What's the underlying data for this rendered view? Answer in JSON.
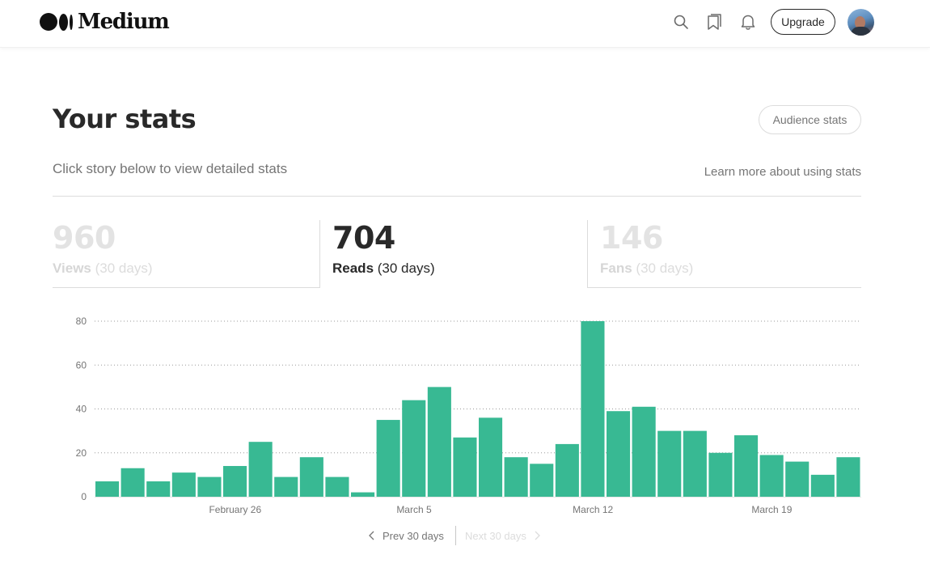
{
  "header": {
    "logo_text": "Medium",
    "upgrade_label": "Upgrade",
    "icons": [
      "search-icon",
      "bookmark-icon",
      "bell-icon",
      "avatar"
    ]
  },
  "stats": {
    "title": "Your stats",
    "audience_label": "Audience stats",
    "subtitle": "Click story below to view detailed stats",
    "learn_more": "Learn more about using stats",
    "tabs": [
      {
        "value": "960",
        "label": "Views",
        "suffix": "(30 days)",
        "active": false
      },
      {
        "value": "704",
        "label": "Reads",
        "suffix": "(30 days)",
        "active": true
      },
      {
        "value": "146",
        "label": "Fans",
        "suffix": "(30 days)",
        "active": false
      }
    ]
  },
  "chart_data": {
    "type": "bar",
    "color": "#38b993",
    "ylim": [
      0,
      80
    ],
    "yticks": [
      "0",
      "20",
      "40",
      "60",
      "80"
    ],
    "values": [
      7,
      13,
      7,
      11,
      9,
      14,
      25,
      9,
      18,
      9,
      2,
      35,
      44,
      50,
      27,
      36,
      18,
      15,
      24,
      80,
      39,
      41,
      30,
      30,
      20,
      28,
      19,
      16,
      10,
      18
    ],
    "xtick_labels": [
      {
        "label": "February 26",
        "index": 5.5
      },
      {
        "label": "March 5",
        "index": 12.5
      },
      {
        "label": "March 12",
        "index": 19.5
      },
      {
        "label": "March 19",
        "index": 26.5
      }
    ]
  },
  "pager": {
    "prev_label": "Prev 30 days",
    "next_label": "Next 30 days"
  }
}
